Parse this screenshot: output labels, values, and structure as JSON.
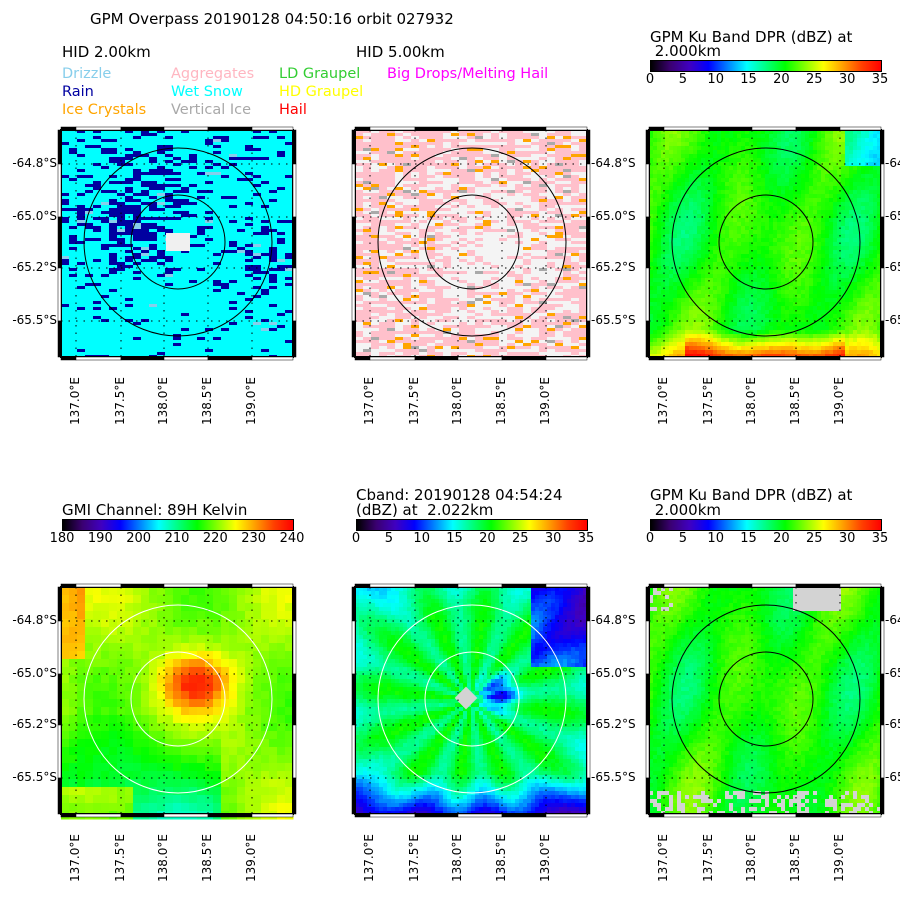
{
  "figure": {
    "suptitle": "GPM Overpass 20190128 04:50:16 orbit 027932"
  },
  "hid_legend": [
    {
      "label": "Drizzle",
      "color": "#87ceeb"
    },
    {
      "label": "Rain",
      "color": "#0000a0"
    },
    {
      "label": "Ice Crystals",
      "color": "#ffa500"
    },
    {
      "label": "Aggregates",
      "color": "#ffb6c1"
    },
    {
      "label": "Wet Snow",
      "color": "#00ffff"
    },
    {
      "label": "Vertical Ice",
      "color": "#a9a9a9"
    },
    {
      "label": "LD Graupel",
      "color": "#32cd32"
    },
    {
      "label": "HD Graupel",
      "color": "#ffff00"
    },
    {
      "label": "Hail",
      "color": "#ff0000"
    },
    {
      "label": "Big Drops/Melting Hail",
      "color": "#ff00ff"
    }
  ],
  "colormaps": {
    "jet_like": [
      "#000000",
      "#3a0070",
      "#4000c0",
      "#0000ff",
      "#0080ff",
      "#00ffff",
      "#00ff80",
      "#00ff00",
      "#80ff00",
      "#ffff00",
      "#ffa000",
      "#ff4000",
      "#ff0000"
    ]
  },
  "chart_data": [
    {
      "type": "heatmap",
      "title": "HID  2.00km",
      "xlabel": "",
      "ylabel": "",
      "x_ticks": [
        "137.0°E",
        "137.5°E",
        "138.0°E",
        "138.5°E",
        "139.0°E"
      ],
      "y_ticks": [
        "-64.8°S",
        "-65.0°S",
        "-65.2°S",
        "-65.5°S"
      ],
      "y_tick_side": "left",
      "rings": {
        "color": "#000000",
        "count": 2
      },
      "categorical": true,
      "dominant_classes": [
        "Wet Snow",
        "Rain",
        "Drizzle"
      ],
      "background_color": "#00ffff",
      "feature_color": "#0000a0",
      "no_data_center": "#f0f0f0"
    },
    {
      "type": "heatmap",
      "title": "HID  5.00km",
      "xlabel": "",
      "ylabel": "",
      "x_ticks": [
        "137.0°E",
        "137.5°E",
        "138.0°E",
        "138.5°E",
        "139.0°E"
      ],
      "y_ticks": [
        "-64.8°S",
        "-65.0°S",
        "-65.2°S",
        "-65.5°S"
      ],
      "y_tick_side": "right",
      "rings": {
        "color": "#000000",
        "count": 2
      },
      "categorical": true,
      "dominant_classes": [
        "Aggregates",
        "Ice Crystals",
        "Vertical Ice"
      ],
      "background_color": "#f4f4f4",
      "feature_color": "#ffc0cb"
    },
    {
      "type": "heatmap",
      "title": "GPM Ku Band DPR (dBZ) at\n 2.000km",
      "title_line1": "GPM Ku Band DPR (dBZ) at",
      "title_line2": " 2.000km",
      "colorbar": {
        "ticks": [
          "0",
          "5",
          "10",
          "15",
          "20",
          "25",
          "30",
          "35"
        ],
        "range": [
          0,
          35
        ]
      },
      "x_ticks": [
        "137.0°E",
        "137.5°E",
        "138.0°E",
        "138.5°E",
        "139.0°E"
      ],
      "y_ticks": [
        "-64.8°S",
        "-65.0°S",
        "-65.2°S",
        "-65.5°S"
      ],
      "y_tick_side": "right",
      "rings": {
        "color": "#000000",
        "count": 2
      },
      "typical_value_dbz": 20,
      "max_region": "bottom edge ~33 dBZ"
    },
    {
      "type": "heatmap",
      "title": "GMI Channel:  89H Kelvin",
      "colorbar": {
        "ticks": [
          "180",
          "190",
          "200",
          "210",
          "220",
          "230",
          "240"
        ],
        "range": [
          180,
          240
        ]
      },
      "x_ticks": [
        "137.0°E",
        "137.5°E",
        "138.0°E",
        "138.5°E",
        "139.0°E"
      ],
      "y_ticks": [
        "-64.8°S",
        "-65.0°S",
        "-65.2°S",
        "-65.5°S"
      ],
      "y_tick_side": "left",
      "rings": {
        "color": "#ffffff",
        "count": 2
      },
      "typical_value_k": 220,
      "max_region": "center-right ~238 K",
      "min_region": "lower-left ~205 K"
    },
    {
      "type": "heatmap",
      "title": "Cband: 20190128 04:54:24\n(dBZ) at  2.022km",
      "title_line1": "Cband: 20190128 04:54:24",
      "title_line2": "(dBZ) at  2.022km",
      "colorbar": {
        "ticks": [
          "0",
          "5",
          "10",
          "15",
          "20",
          "25",
          "30",
          "35"
        ],
        "range": [
          0,
          35
        ]
      },
      "x_ticks": [
        "137.0°E",
        "137.5°E",
        "138.0°E",
        "138.5°E",
        "139.0°E"
      ],
      "y_ticks": [
        "-64.8°S",
        "-65.0°S",
        "-65.2°S",
        "-65.5°S"
      ],
      "y_tick_side": "right",
      "rings": {
        "color": "#ffffff",
        "count": 2
      },
      "typical_value_dbz": 18,
      "min_region": "edges ~8 dBZ"
    },
    {
      "type": "heatmap",
      "title": "GPM Ku Band DPR (dBZ) at\n 2.000km",
      "title_line1": "GPM Ku Band DPR (dBZ) at",
      "title_line2": " 2.000km",
      "colorbar": {
        "ticks": [
          "0",
          "5",
          "10",
          "15",
          "20",
          "25",
          "30",
          "35"
        ],
        "range": [
          0,
          35
        ]
      },
      "x_ticks": [
        "137.0°E",
        "137.5°E",
        "138.0°E",
        "138.5°E",
        "139.0°E"
      ],
      "y_ticks": [
        "-64.8°S",
        "-65.0°S",
        "-65.2°S",
        "-65.5°S"
      ],
      "y_tick_side": "right",
      "rings": {
        "color": "#000000",
        "count": 2
      },
      "typical_value_dbz": 21,
      "no_data_color": "#d3d3d3"
    }
  ]
}
